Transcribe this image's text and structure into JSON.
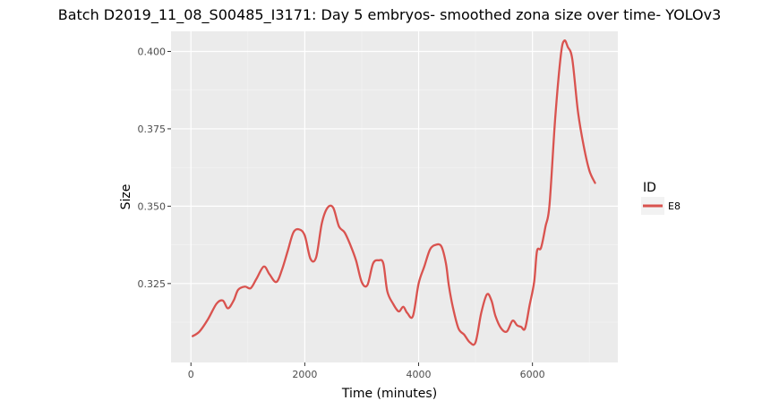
{
  "chart_data": {
    "type": "line",
    "title": "Batch D2019_11_08_S00485_I3171: Day 5 embryos- smoothed zona size over time- YOLOv3",
    "xlabel": "Time (minutes)",
    "ylabel": "Size",
    "xlim": [
      -350,
      7500
    ],
    "ylim": [
      0.2995,
      0.4065
    ],
    "x_ticks": [
      0,
      2000,
      4000,
      6000
    ],
    "x_tick_labels": [
      "0",
      "2000",
      "4000",
      "6000"
    ],
    "y_ticks": [
      0.325,
      0.35,
      0.375,
      0.4
    ],
    "y_tick_labels": [
      "0.325",
      "0.350",
      "0.375",
      "0.400"
    ],
    "grid": true,
    "legend": {
      "title": "ID",
      "position": "right"
    },
    "series": [
      {
        "name": "E8",
        "color": "#d9534f",
        "x": [
          30,
          150,
          300,
          450,
          560,
          650,
          750,
          830,
          950,
          1050,
          1150,
          1280,
          1380,
          1500,
          1600,
          1700,
          1800,
          1900,
          2000,
          2100,
          2200,
          2300,
          2400,
          2500,
          2600,
          2700,
          2800,
          2900,
          3000,
          3100,
          3200,
          3300,
          3380,
          3450,
          3550,
          3650,
          3730,
          3800,
          3900,
          4000,
          4100,
          4200,
          4300,
          4400,
          4480,
          4530,
          4600,
          4700,
          4800,
          4900,
          5000,
          5100,
          5200,
          5280,
          5350,
          5450,
          5550,
          5650,
          5730,
          5800,
          5870,
          5950,
          6030,
          6080,
          6150,
          6230,
          6300,
          6400,
          6500,
          6560,
          6620,
          6700,
          6800,
          6900,
          7000,
          7100
        ],
        "y": [
          0.308,
          0.3095,
          0.3135,
          0.3185,
          0.3195,
          0.317,
          0.3195,
          0.323,
          0.324,
          0.3235,
          0.3265,
          0.3305,
          0.328,
          0.3255,
          0.3295,
          0.3355,
          0.3415,
          0.3425,
          0.3405,
          0.333,
          0.3335,
          0.3445,
          0.3495,
          0.3495,
          0.3435,
          0.3415,
          0.3375,
          0.3325,
          0.3255,
          0.3245,
          0.3315,
          0.3325,
          0.3315,
          0.3225,
          0.3185,
          0.316,
          0.3175,
          0.3155,
          0.3145,
          0.325,
          0.3305,
          0.336,
          0.3375,
          0.337,
          0.3315,
          0.3245,
          0.3175,
          0.3105,
          0.3085,
          0.306,
          0.306,
          0.3155,
          0.3215,
          0.3195,
          0.3145,
          0.3105,
          0.3095,
          0.313,
          0.3115,
          0.311,
          0.3105,
          0.318,
          0.3255,
          0.3355,
          0.3365,
          0.3435,
          0.3505,
          0.3785,
          0.399,
          0.4035,
          0.4015,
          0.3975,
          0.3805,
          0.3695,
          0.3615,
          0.3575
        ]
      }
    ]
  }
}
